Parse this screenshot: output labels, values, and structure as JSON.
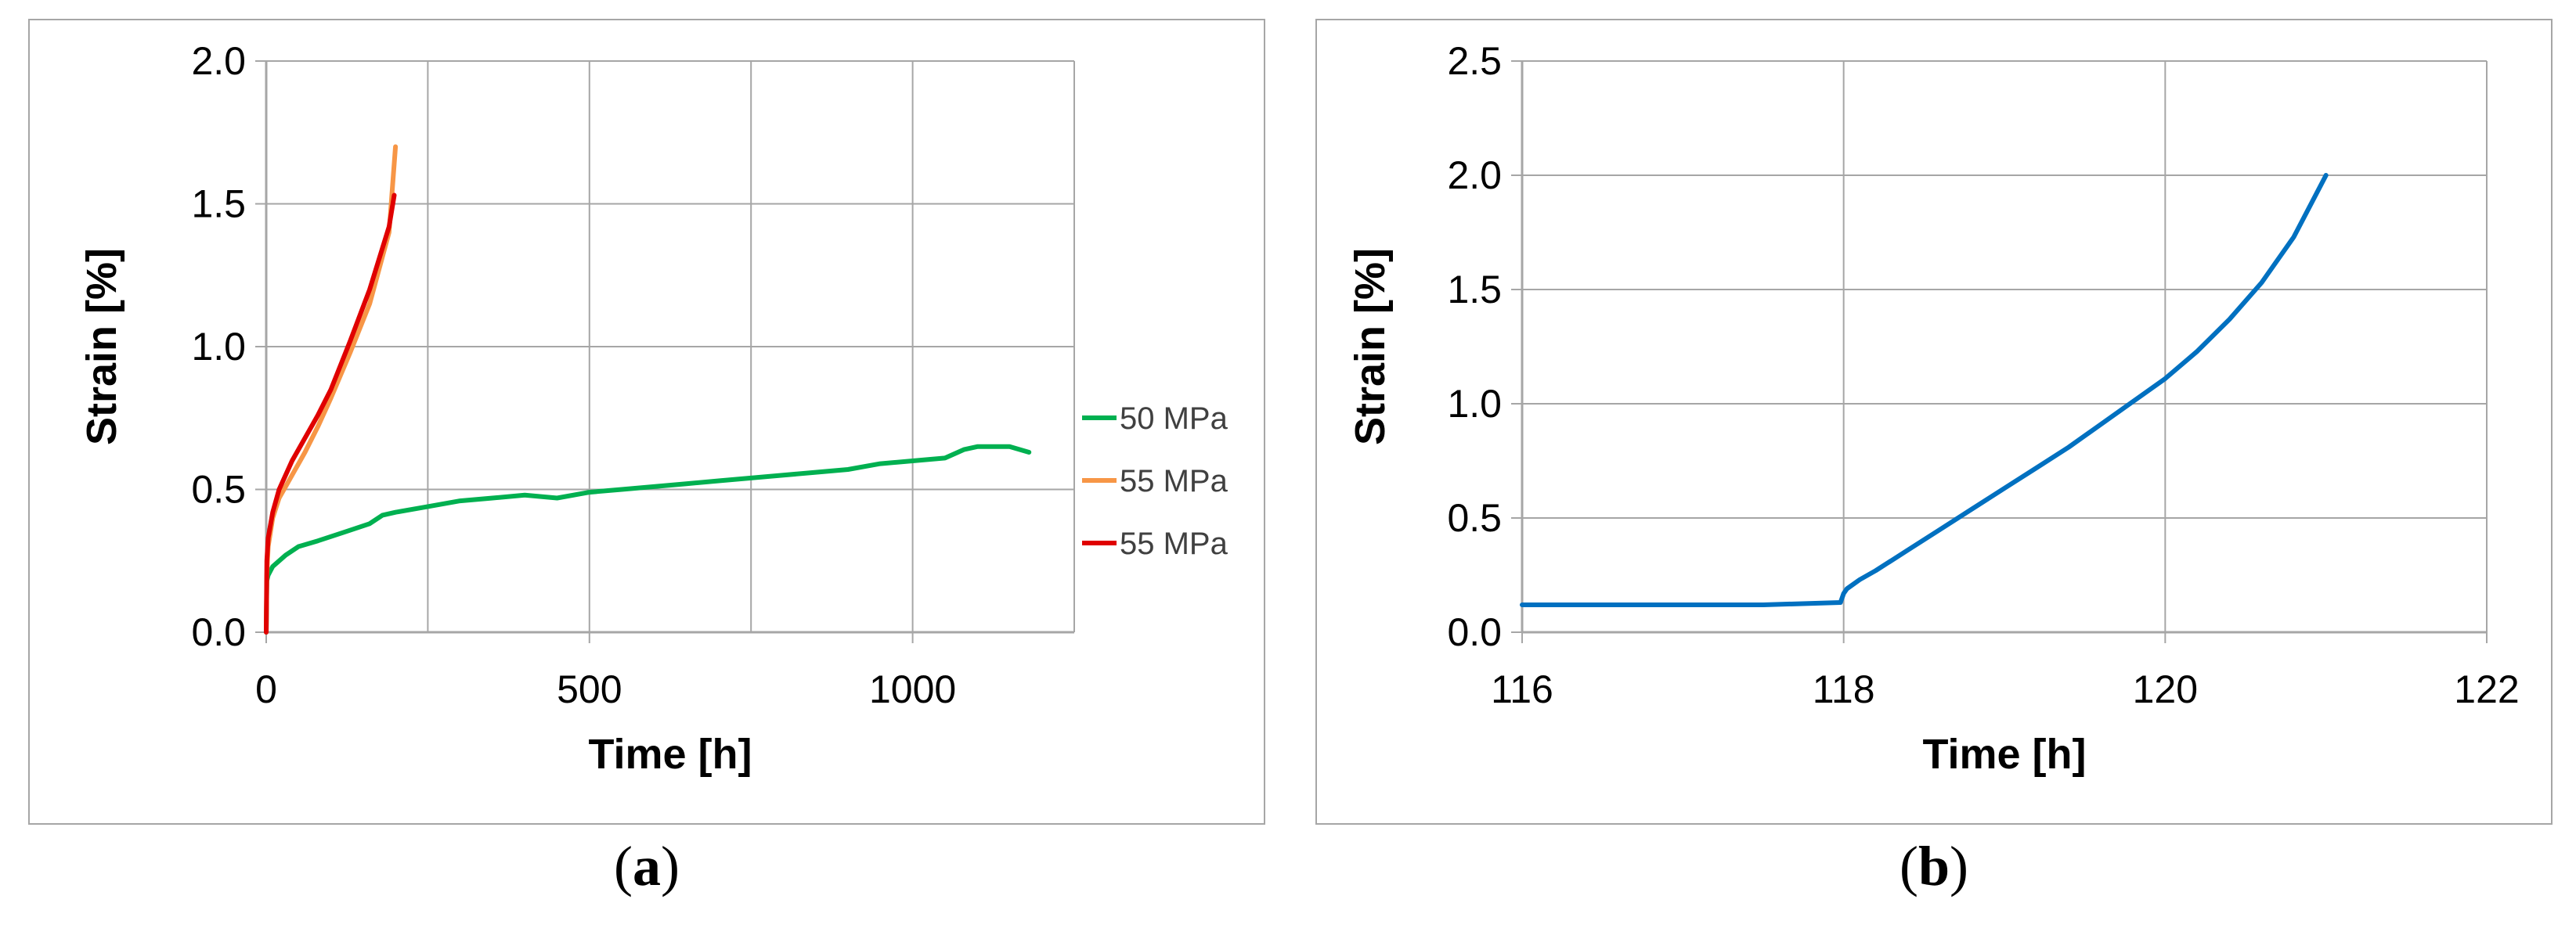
{
  "chart_data": [
    {
      "type": "line",
      "panel_label": "a",
      "xlabel": "Time [h]",
      "ylabel": "Strain [%]",
      "xlim": [
        0,
        1250
      ],
      "ylim": [
        0,
        2.0
      ],
      "xticks": [
        0,
        500,
        1000
      ],
      "xtick_labels": [
        "0",
        "500",
        "1000"
      ],
      "yticks": [
        0,
        0.5,
        1.0,
        1.5,
        2.0
      ],
      "ytick_labels": [
        "0.0",
        "0.5",
        "1.0",
        "1.5",
        "2.0"
      ],
      "xgrid": [
        0,
        250,
        500,
        750,
        1000,
        1250
      ],
      "grid": true,
      "legend_position": "right",
      "series": [
        {
          "name": "50 MPa",
          "color": "#00b050",
          "x": [
            0,
            1,
            3,
            10,
            30,
            50,
            80,
            120,
            160,
            180,
            200,
            250,
            300,
            350,
            400,
            450,
            500,
            550,
            600,
            650,
            700,
            750,
            800,
            850,
            900,
            950,
            1000,
            1050,
            1080,
            1100,
            1150,
            1180
          ],
          "y": [
            0,
            0.18,
            0.2,
            0.23,
            0.27,
            0.3,
            0.32,
            0.35,
            0.38,
            0.41,
            0.42,
            0.44,
            0.46,
            0.47,
            0.48,
            0.47,
            0.49,
            0.5,
            0.51,
            0.52,
            0.53,
            0.54,
            0.55,
            0.56,
            0.57,
            0.59,
            0.6,
            0.61,
            0.64,
            0.65,
            0.65,
            0.63
          ]
        },
        {
          "name": "55 MPa",
          "color": "#f79646",
          "x": [
            0,
            1,
            3,
            10,
            20,
            40,
            60,
            80,
            100,
            130,
            160,
            190,
            200
          ],
          "y": [
            0,
            0.2,
            0.3,
            0.4,
            0.47,
            0.55,
            0.63,
            0.72,
            0.82,
            0.98,
            1.15,
            1.4,
            1.7
          ]
        },
        {
          "name": "55 MPa",
          "color": "#e00000",
          "x": [
            0,
            1,
            3,
            10,
            20,
            40,
            60,
            80,
            100,
            130,
            160,
            190,
            198
          ],
          "y": [
            0,
            0.25,
            0.33,
            0.42,
            0.5,
            0.6,
            0.68,
            0.76,
            0.85,
            1.02,
            1.2,
            1.42,
            1.53
          ]
        }
      ]
    },
    {
      "type": "line",
      "panel_label": "b",
      "xlabel": "Time [h]",
      "ylabel": "Strain [%]",
      "xlim": [
        116,
        122
      ],
      "ylim": [
        0,
        2.5
      ],
      "xticks": [
        116,
        118,
        120,
        122
      ],
      "xtick_labels": [
        "116",
        "118",
        "120",
        "122"
      ],
      "yticks": [
        0,
        0.5,
        1.0,
        1.5,
        2.0,
        2.5
      ],
      "ytick_labels": [
        "0.0",
        "0.5",
        "1.0",
        "1.5",
        "2.0",
        "2.5"
      ],
      "xgrid": [
        116,
        118,
        120,
        122
      ],
      "grid": true,
      "series": [
        {
          "color": "#0070c0",
          "x": [
            116,
            117,
            117.3,
            117.5,
            117.98,
            118.0,
            118.02,
            118.1,
            118.2,
            118.4,
            118.6,
            118.8,
            119.0,
            119.2,
            119.4,
            119.6,
            119.8,
            120.0,
            120.2,
            120.4,
            120.6,
            120.8,
            121.0
          ],
          "y": [
            0.12,
            0.12,
            0.12,
            0.12,
            0.13,
            0.17,
            0.19,
            0.23,
            0.27,
            0.36,
            0.45,
            0.54,
            0.63,
            0.72,
            0.81,
            0.91,
            1.01,
            1.11,
            1.23,
            1.37,
            1.53,
            1.73,
            2.0
          ]
        }
      ]
    }
  ]
}
